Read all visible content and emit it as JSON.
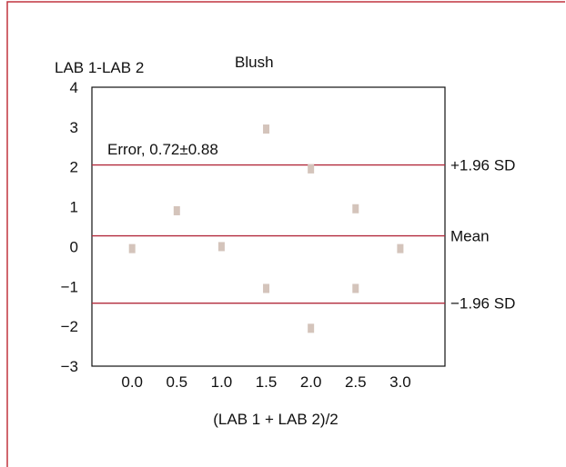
{
  "chart_data": {
    "type": "scatter",
    "title": "Blush",
    "ylabel": "LAB 1-LAB 2",
    "xlabel": "(LAB 1 + LAB 2)/2",
    "xlim": [
      -0.45,
      3.5
    ],
    "ylim": [
      -3,
      4
    ],
    "x_ticks": [
      "0.0",
      "0.5",
      "1.0",
      "1.5",
      "2.0",
      "2.5",
      "3.0"
    ],
    "x_tick_values": [
      0.0,
      0.5,
      1.0,
      1.5,
      2.0,
      2.5,
      3.0
    ],
    "y_ticks": [
      "4",
      "3",
      "2",
      "1",
      "0",
      "−1",
      "−2",
      "−3"
    ],
    "y_tick_values": [
      4,
      3,
      2,
      1,
      0,
      -1,
      -2,
      -3
    ],
    "points": [
      {
        "x": 0.0,
        "y": -0.05
      },
      {
        "x": 0.5,
        "y": 0.9
      },
      {
        "x": 1.0,
        "y": 0.0
      },
      {
        "x": 1.5,
        "y": 2.95
      },
      {
        "x": 1.5,
        "y": -1.05
      },
      {
        "x": 2.0,
        "y": 1.95
      },
      {
        "x": 2.0,
        "y": -2.05
      },
      {
        "x": 2.5,
        "y": 0.95
      },
      {
        "x": 2.5,
        "y": -1.05
      },
      {
        "x": 3.0,
        "y": -0.05
      }
    ],
    "reference_lines": [
      {
        "label": "+1.96 SD",
        "y": 2.05
      },
      {
        "label": "Mean",
        "y": 0.27
      },
      {
        "label": "−1.96 SD",
        "y": -1.42
      }
    ],
    "annotation": "Error, 0.72±0.88",
    "colors": {
      "border": "#c0343f",
      "reference_line": "#b22a3c",
      "marker": "#d4c4bb",
      "axis": "#111111"
    },
    "grid": false
  }
}
